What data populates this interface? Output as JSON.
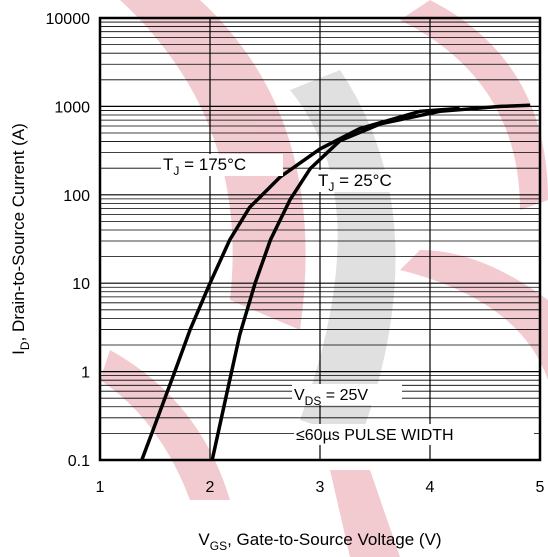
{
  "chart_data": {
    "type": "line",
    "x_label": {
      "main": "V",
      "sub": "GS",
      "rest": ", Gate-to-Source Voltage (V)"
    },
    "y_label": {
      "main": "I",
      "sub": "D",
      "rest": ", Drain-to-Source Current  (A)"
    },
    "xlim": [
      1,
      5
    ],
    "xticks": [
      1,
      2,
      3,
      4,
      5
    ],
    "ylim": [
      0.1,
      10000
    ],
    "yticks": [
      0.1,
      1,
      10,
      100,
      1000,
      10000
    ],
    "log_y": true,
    "grid": true,
    "minor_grid": true,
    "series": [
      {
        "name": {
          "main": "T",
          "sub": "J",
          "rest": " = 175°C"
        },
        "color": "#000000",
        "x": [
          1.38,
          1.5,
          1.68,
          1.82,
          2.0,
          2.18,
          2.36,
          2.64,
          3.0,
          3.36,
          3.91,
          4.27
        ],
        "values": [
          0.1,
          0.25,
          1,
          3,
          10,
          31,
          72,
          160,
          330,
          560,
          880,
          950
        ]
      },
      {
        "name": {
          "main": "T",
          "sub": "J",
          "rest": " = 25°C"
        },
        "color": "#000000",
        "x": [
          2.02,
          2.14,
          2.27,
          2.41,
          2.55,
          2.73,
          2.91,
          3.18,
          3.55,
          4.09,
          4.64,
          4.91
        ],
        "values": [
          0.1,
          0.48,
          2.6,
          10,
          31,
          89,
          197,
          408,
          635,
          880,
          1000,
          1030
        ]
      }
    ],
    "annotations": [
      {
        "main": "V",
        "sub": "DS",
        "rest": " = 25V"
      },
      {
        "main": "≤60µs PULSE WIDTH"
      }
    ]
  }
}
